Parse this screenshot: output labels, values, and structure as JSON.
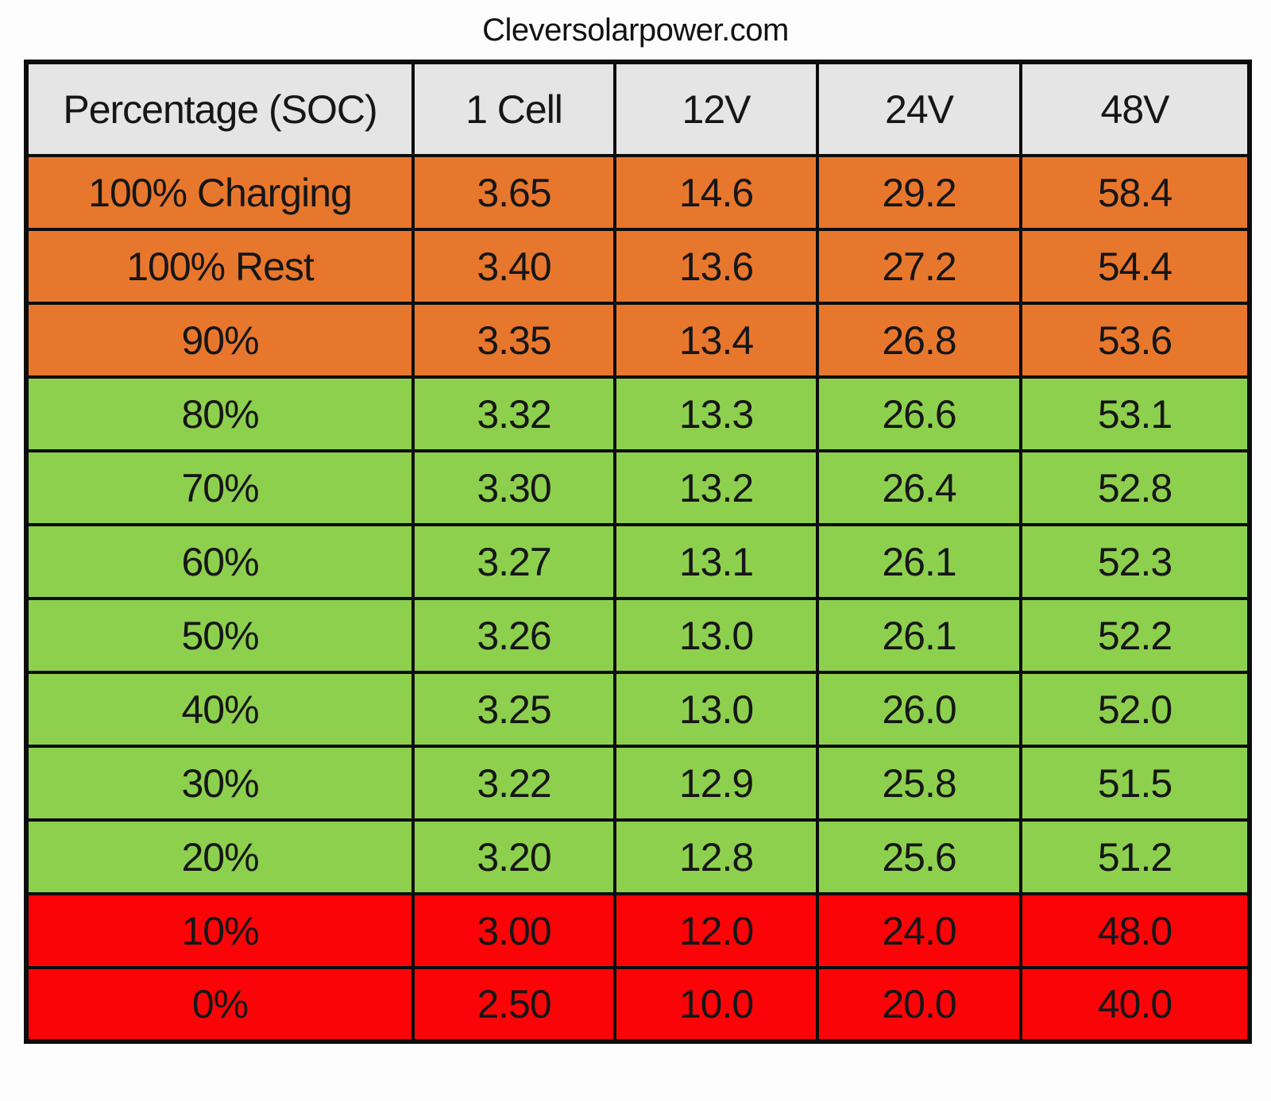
{
  "title": "Cleversolarpower.com",
  "colors": {
    "orange_row": "#E8772E",
    "green_row": "#8DD04E",
    "red_row": "#FB0408",
    "header_gray": "#E5E5E5",
    "border_black": "#0D0D0D",
    "text": "#161616",
    "page_background": "#FDFDFD"
  },
  "table": {
    "columns": [
      "Percentage (SOC)",
      "1 Cell",
      "12V",
      "24V",
      "48V"
    ],
    "rows": [
      {
        "label": "100% Charging",
        "values": [
          "3.65",
          "14.6",
          "29.2",
          "58.4"
        ],
        "state": "orange"
      },
      {
        "label": "100% Rest",
        "values": [
          "3.40",
          "13.6",
          "27.2",
          "54.4"
        ],
        "state": "orange"
      },
      {
        "label": "90%",
        "values": [
          "3.35",
          "13.4",
          "26.8",
          "53.6"
        ],
        "state": "orange"
      },
      {
        "label": "80%",
        "values": [
          "3.32",
          "13.3",
          "26.6",
          "53.1"
        ],
        "state": "green"
      },
      {
        "label": "70%",
        "values": [
          "3.30",
          "13.2",
          "26.4",
          "52.8"
        ],
        "state": "green"
      },
      {
        "label": "60%",
        "values": [
          "3.27",
          "13.1",
          "26.1",
          "52.3"
        ],
        "state": "green"
      },
      {
        "label": "50%",
        "values": [
          "3.26",
          "13.0",
          "26.1",
          "52.2"
        ],
        "state": "green"
      },
      {
        "label": "40%",
        "values": [
          "3.25",
          "13.0",
          "26.0",
          "52.0"
        ],
        "state": "green"
      },
      {
        "label": "30%",
        "values": [
          "3.22",
          "12.9",
          "25.8",
          "51.5"
        ],
        "state": "green"
      },
      {
        "label": "20%",
        "values": [
          "3.20",
          "12.8",
          "25.6",
          "51.2"
        ],
        "state": "green"
      },
      {
        "label": "10%",
        "values": [
          "3.00",
          "12.0",
          "24.0",
          "48.0"
        ],
        "state": "red"
      },
      {
        "label": "0%",
        "values": [
          "2.50",
          "10.0",
          "20.0",
          "40.0"
        ],
        "state": "red"
      }
    ]
  },
  "chart_data": {
    "type": "table",
    "title": "Cleversolarpower.com",
    "columns": [
      "Percentage (SOC)",
      "1 Cell",
      "12V",
      "24V",
      "48V"
    ],
    "rows": [
      [
        "100% Charging",
        3.65,
        14.6,
        29.2,
        58.4
      ],
      [
        "100% Rest",
        3.4,
        13.6,
        27.2,
        54.4
      ],
      [
        "90%",
        3.35,
        13.4,
        26.8,
        53.6
      ],
      [
        "80%",
        3.32,
        13.3,
        26.6,
        53.1
      ],
      [
        "70%",
        3.3,
        13.2,
        26.4,
        52.8
      ],
      [
        "60%",
        3.27,
        13.1,
        26.1,
        52.3
      ],
      [
        "50%",
        3.26,
        13.0,
        26.1,
        52.2
      ],
      [
        "40%",
        3.25,
        13.0,
        26.0,
        52.0
      ],
      [
        "30%",
        3.22,
        12.9,
        25.8,
        51.5
      ],
      [
        "20%",
        3.2,
        12.8,
        25.6,
        51.2
      ],
      [
        "10%",
        3.0,
        12.0,
        24.0,
        48.0
      ],
      [
        "0%",
        2.5,
        10.0,
        20.0,
        40.0
      ]
    ],
    "row_color_states": [
      "orange",
      "orange",
      "orange",
      "green",
      "green",
      "green",
      "green",
      "green",
      "green",
      "green",
      "red",
      "red"
    ],
    "legend_position": "none",
    "grid": "solid black cell borders"
  }
}
